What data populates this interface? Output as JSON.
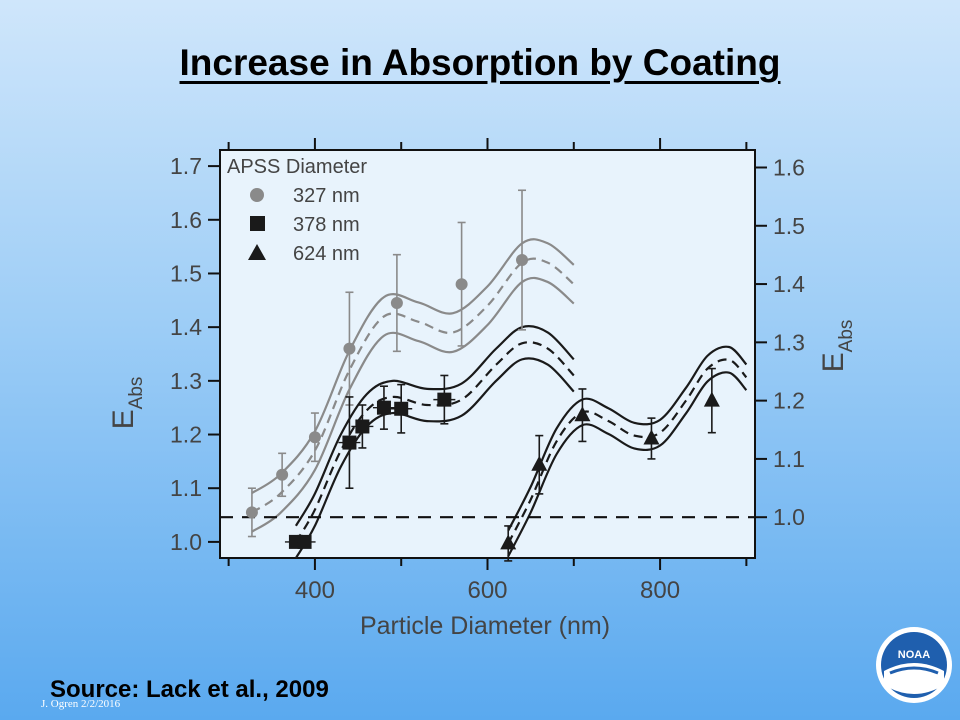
{
  "slide": {
    "title": "Increase in Absorption by Coating",
    "source": "Source:  Lack et al., 2009",
    "footer": "J. Ogren  2/2/2016",
    "logo_text": "NOAA"
  },
  "chart_data": {
    "type": "scatter",
    "xlabel": "Particle Diameter (nm)",
    "ylabel_left": "E",
    "ylabel_left_sub": "Abs",
    "ylabel_right": "E",
    "ylabel_right_sub": "Abs",
    "xlim": [
      290,
      910
    ],
    "ylim_left": [
      0.97,
      1.73
    ],
    "ylim_right": [
      0.93,
      1.63
    ],
    "x_ticks": [
      400,
      600,
      800
    ],
    "y_ticks_left": [
      1.0,
      1.1,
      1.2,
      1.3,
      1.4,
      1.5,
      1.6,
      1.7
    ],
    "y_ticks_right": [
      1.0,
      1.1,
      1.2,
      1.3,
      1.4,
      1.5,
      1.6
    ],
    "legend_title": "APSS Diameter",
    "legend_position": "top-left",
    "reference_line_right": 1.0,
    "colors": {
      "gray": "#8a8a8a",
      "black": "#1a1a1a"
    },
    "series": [
      {
        "name": "327 nm",
        "marker": "circle",
        "color": "#8a8a8a",
        "axis": "left",
        "x": [
          327,
          362,
          400,
          440,
          495,
          570,
          640
        ],
        "y": [
          1.055,
          1.125,
          1.195,
          1.36,
          1.445,
          1.48,
          1.525
        ],
        "err": [
          0.045,
          0.04,
          0.045,
          0.105,
          0.09,
          0.115,
          0.13
        ],
        "fit_x": [
          327,
          360,
          400,
          440,
          480,
          520,
          560,
          600,
          640,
          670,
          700
        ],
        "fit_y": [
          1.055,
          1.09,
          1.17,
          1.32,
          1.42,
          1.41,
          1.39,
          1.44,
          1.52,
          1.52,
          1.48
        ],
        "band": 0.036
      },
      {
        "name": "378 nm",
        "marker": "square",
        "color": "#1a1a1a",
        "axis": "left",
        "x": [
          378,
          388,
          440,
          455,
          480,
          500,
          550
        ],
        "y": [
          1.0,
          1.0,
          1.185,
          1.215,
          1.25,
          1.248,
          1.265
        ],
        "err": [
          0.0,
          0.0,
          0.085,
          0.04,
          0.04,
          0.045,
          0.045
        ],
        "fit_x": [
          378,
          400,
          430,
          460,
          490,
          530,
          570,
          610,
          640,
          670,
          700
        ],
        "fit_y": [
          1.0,
          1.06,
          1.17,
          1.245,
          1.27,
          1.255,
          1.265,
          1.33,
          1.37,
          1.36,
          1.31
        ],
        "band": 0.03
      },
      {
        "name": "624 nm",
        "marker": "triangle",
        "color": "#1a1a1a",
        "axis": "right",
        "x": [
          624,
          660,
          710,
          790,
          860
        ],
        "y": [
          0.955,
          1.09,
          1.175,
          1.135,
          1.2
        ],
        "err": [
          0.03,
          0.05,
          0.045,
          0.035,
          0.055
        ],
        "fit_x": [
          624,
          650,
          680,
          710,
          740,
          770,
          800,
          830,
          855,
          880,
          900
        ],
        "fit_y": [
          0.955,
          1.03,
          1.13,
          1.18,
          1.165,
          1.14,
          1.145,
          1.2,
          1.255,
          1.27,
          1.24
        ],
        "band": 0.022
      }
    ]
  }
}
